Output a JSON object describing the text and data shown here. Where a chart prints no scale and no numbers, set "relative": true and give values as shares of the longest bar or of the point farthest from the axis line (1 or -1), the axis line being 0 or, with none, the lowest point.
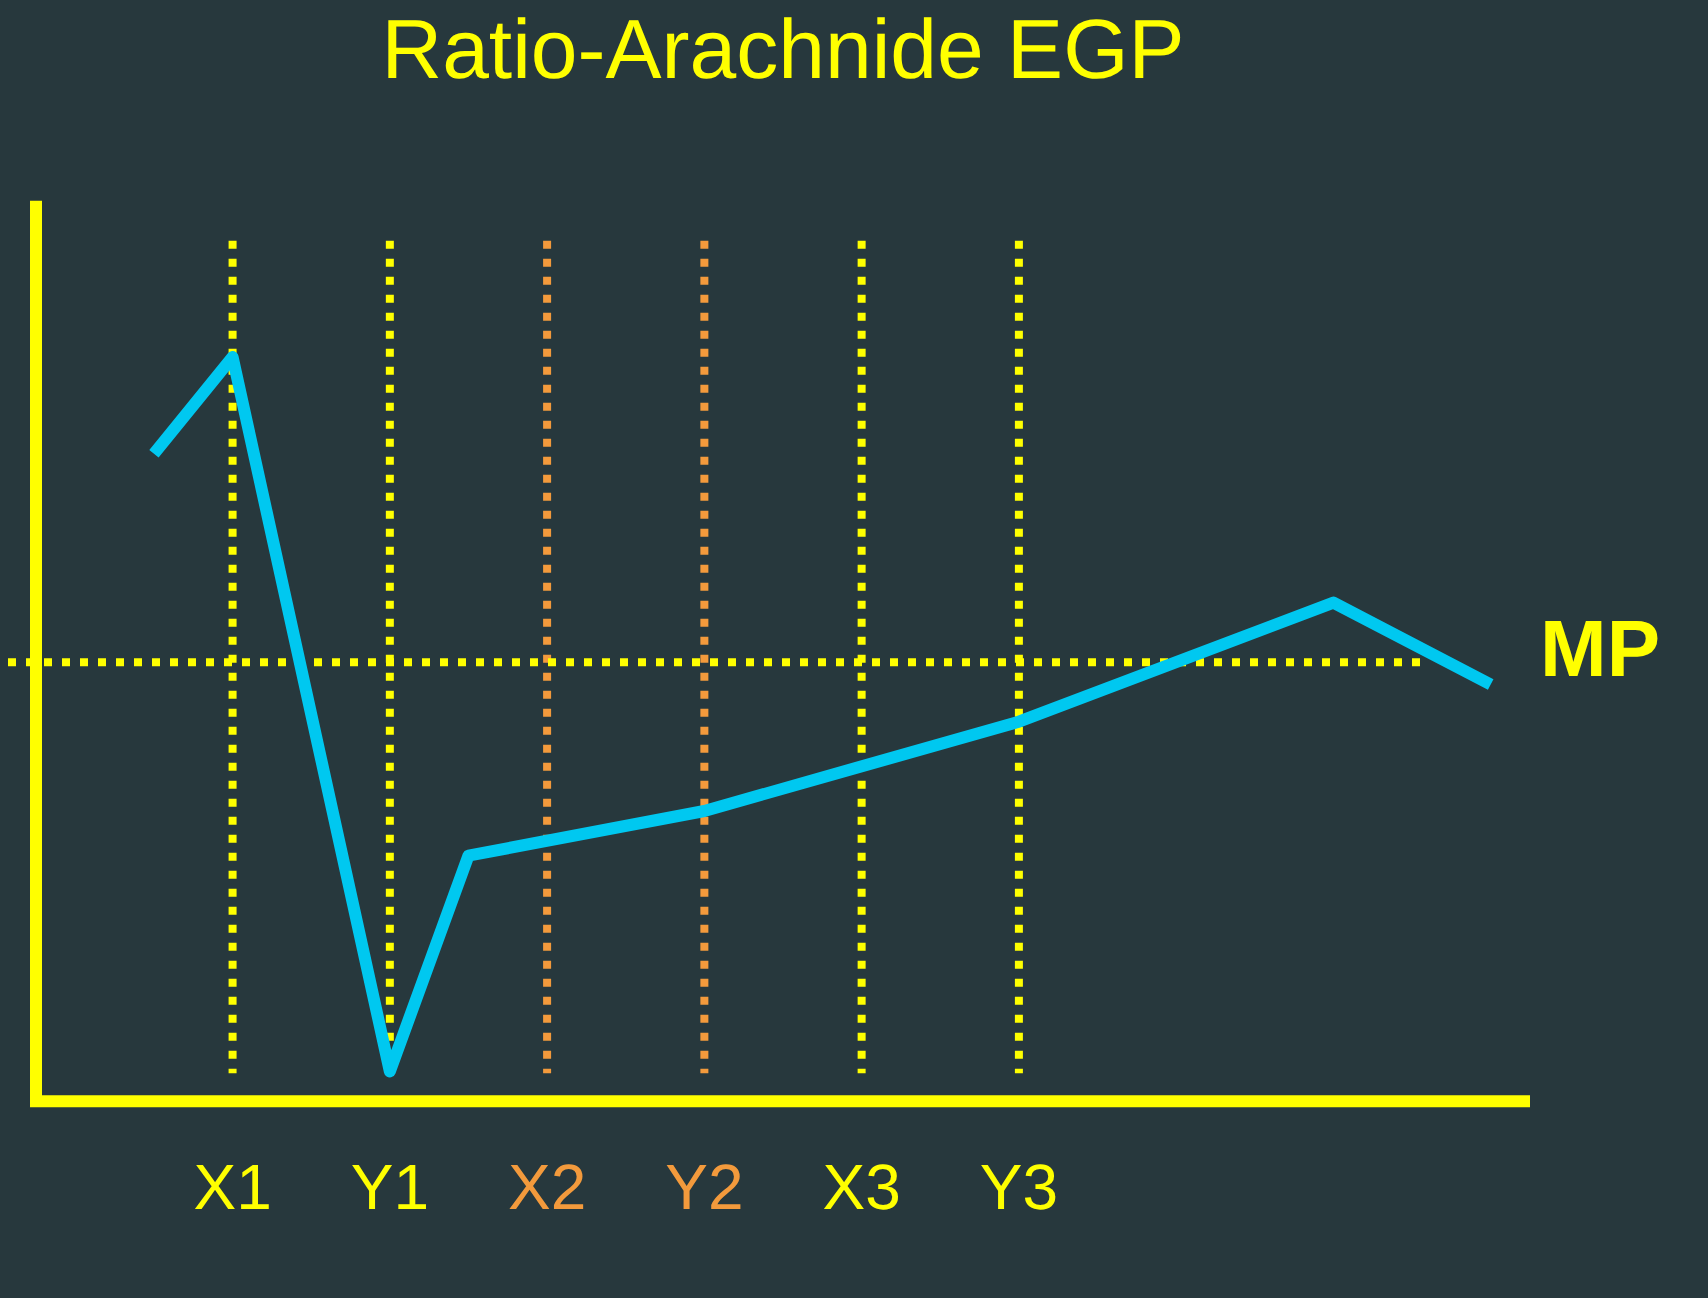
{
  "chart_data": {
    "type": "line",
    "title": "Ratio-Arachnide EGP",
    "relative": true,
    "categories": [
      null,
      null,
      "X1",
      null,
      "Y1",
      null,
      "X2",
      null,
      "Y2",
      null,
      "X3",
      null,
      "Y3",
      null,
      null,
      null,
      null,
      null,
      null
    ],
    "series": [
      {
        "color": "#00c8f0",
        "values": [
          null,
          0.87,
          1,
          null,
          0.04,
          0.33,
          null,
          null,
          0.39,
          null,
          null,
          null,
          0.51,
          null,
          null,
          null,
          0.67,
          null,
          0.56
        ]
      }
    ],
    "ref_lines": [
      {
        "axis": "x",
        "value": "X1",
        "color": "#ffff00",
        "line_style": "dotted"
      },
      {
        "axis": "x",
        "value": "Y1",
        "color": "#ffff00",
        "line_style": "dotted"
      },
      {
        "axis": "x",
        "value": "X2",
        "color": "#f39a3c",
        "line_style": "dotted"
      },
      {
        "axis": "x",
        "value": "Y2",
        "color": "#f39a3c",
        "line_style": "dotted"
      },
      {
        "axis": "x",
        "value": "X3",
        "color": "#ffff00",
        "line_style": "dotted"
      },
      {
        "axis": "x",
        "value": "Y3",
        "color": "#ffff00",
        "line_style": "dotted"
      },
      {
        "axis": "y",
        "value": 0.59,
        "label": "MP",
        "color": "#ffff00",
        "line_style": "dotted"
      }
    ],
    "grid": false,
    "legend": false,
    "marker": "none",
    "line_style": "solid"
  }
}
